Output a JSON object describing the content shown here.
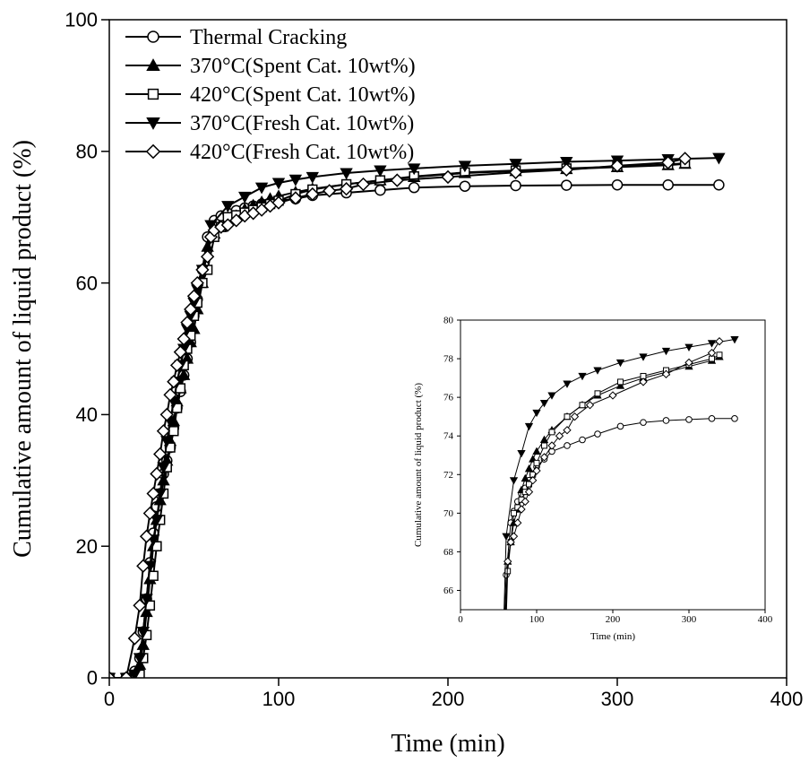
{
  "chart_data": [
    {
      "type": "line",
      "panel": "main",
      "xlabel": "Time (min)",
      "ylabel": "Cumulative amount of liquid product (%)",
      "xlim": [
        0,
        400
      ],
      "ylim": [
        0,
        100
      ],
      "xticks": [
        0,
        100,
        200,
        300,
        400
      ],
      "yticks": [
        0,
        20,
        40,
        60,
        80,
        100
      ],
      "legend_position": "top-left",
      "series": [
        {
          "name": "Thermal Cracking",
          "marker": "circle-open",
          "x": [
            0,
            10,
            15,
            18,
            20,
            22,
            24,
            26,
            28,
            30,
            32,
            34,
            36,
            38,
            40,
            42,
            44,
            46,
            48,
            50,
            52,
            55,
            58,
            62,
            66,
            70,
            75,
            80,
            85,
            90,
            95,
            100,
            110,
            120,
            140,
            160,
            180,
            210,
            240,
            270,
            300,
            330,
            360
          ],
          "y": [
            0,
            0,
            1,
            3,
            7,
            12,
            17.5,
            22,
            26,
            28,
            31,
            33,
            35,
            38,
            41,
            43.5,
            46,
            48.5,
            51,
            55,
            57.5,
            62,
            67,
            69.5,
            70.2,
            70.6,
            71,
            71.4,
            71.7,
            72,
            72.2,
            72.5,
            72.8,
            73.3,
            73.7,
            74.1,
            74.5,
            74.7,
            74.8,
            74.85,
            74.9,
            74.9,
            74.9
          ]
        },
        {
          "name": "370°C(Spent Cat. 10wt%)",
          "marker": "triangle-up-filled",
          "x": [
            0,
            10,
            15,
            18,
            20,
            22,
            24,
            26,
            28,
            30,
            32,
            34,
            36,
            38,
            40,
            42,
            44,
            46,
            48,
            50,
            52,
            55,
            58,
            62,
            66,
            70,
            75,
            80,
            85,
            90,
            95,
            100,
            110,
            120,
            140,
            160,
            180,
            210,
            240,
            270,
            300,
            330,
            340
          ],
          "y": [
            0,
            0,
            0.5,
            2,
            5,
            10,
            15,
            20,
            24,
            27,
            30,
            33,
            36,
            39,
            42,
            44,
            46,
            48.5,
            51,
            53,
            56,
            60,
            65.5,
            67.5,
            68.5,
            69.5,
            70.2,
            71.2,
            71.8,
            72.3,
            72.8,
            73.2,
            73.8,
            74.3,
            75,
            75.6,
            76.1,
            76.7,
            77,
            77.3,
            77.6,
            77.9,
            78.1
          ]
        },
        {
          "name": "420°C(Spent Cat. 10wt%)",
          "marker": "square-open",
          "x": [
            0,
            10,
            15,
            18,
            20,
            22,
            24,
            26,
            28,
            30,
            32,
            34,
            36,
            38,
            40,
            42,
            44,
            46,
            48,
            50,
            52,
            55,
            58,
            62,
            66,
            70,
            75,
            80,
            85,
            90,
            95,
            100,
            110,
            120,
            140,
            160,
            180,
            210,
            240,
            270,
            300,
            330,
            340
          ],
          "y": [
            0,
            0,
            0,
            0.5,
            3,
            6.5,
            11,
            15.5,
            20,
            24,
            28,
            32,
            35,
            37.5,
            41,
            44,
            47.5,
            50,
            52,
            55,
            57,
            60,
            62,
            67,
            68.5,
            70,
            70.3,
            70.7,
            71.1,
            71.5,
            72,
            72.5,
            73.5,
            74.2,
            75,
            75.6,
            76.2,
            76.8,
            77.1,
            77.4,
            77.7,
            78,
            78.2
          ]
        },
        {
          "name": "370°C(Fresh Cat. 10wt%)",
          "marker": "triangle-down-filled",
          "x": [
            0,
            10,
            15,
            18,
            20,
            22,
            24,
            26,
            28,
            30,
            32,
            34,
            36,
            38,
            40,
            42,
            44,
            46,
            48,
            50,
            52,
            55,
            60,
            70,
            80,
            90,
            100,
            110,
            120,
            140,
            160,
            180,
            210,
            240,
            270,
            300,
            330,
            360
          ],
          "y": [
            0,
            0,
            0.5,
            3,
            7,
            12,
            17,
            21,
            24,
            28,
            32,
            36,
            39,
            42,
            45,
            47.5,
            50,
            53,
            55,
            57,
            59,
            62,
            68.8,
            71.7,
            73.1,
            74.5,
            75.2,
            75.7,
            76.1,
            76.7,
            77.1,
            77.4,
            77.8,
            78.1,
            78.4,
            78.6,
            78.8,
            79
          ]
        },
        {
          "name": "420°C(Fresh Cat. 10wt%)",
          "marker": "diamond-open",
          "x": [
            0,
            10,
            15,
            18,
            20,
            22,
            24,
            26,
            28,
            30,
            32,
            34,
            36,
            38,
            40,
            42,
            44,
            46,
            48,
            50,
            52,
            55,
            58,
            60,
            62,
            66,
            70,
            75,
            80,
            85,
            90,
            95,
            100,
            110,
            120,
            130,
            140,
            150,
            170,
            200,
            240,
            270,
            300,
            330,
            340
          ],
          "y": [
            0,
            0,
            6,
            11,
            17,
            21.5,
            25,
            28,
            31,
            34,
            37.5,
            40,
            43,
            45,
            47.5,
            49.5,
            51.5,
            54,
            56,
            58,
            60,
            62,
            64,
            67,
            68,
            68.5,
            68.8,
            69.5,
            70.2,
            70.6,
            71.1,
            71.7,
            72.2,
            72.9,
            73.5,
            74,
            74.3,
            75,
            75.6,
            76.1,
            76.8,
            77.2,
            77.8,
            78.3,
            78.9
          ]
        }
      ]
    },
    {
      "type": "line",
      "panel": "inset",
      "xlabel": "Time (min)",
      "ylabel": "Cumulative amount of liquid product (%)",
      "xlim": [
        0,
        400
      ],
      "ylim": [
        65,
        80
      ],
      "xticks": [
        0,
        100,
        200,
        300,
        400
      ],
      "yticks": [
        66,
        68,
        70,
        72,
        74,
        76,
        78,
        80
      ],
      "series": [
        {
          "name": "Thermal Cracking",
          "marker": "circle-open",
          "x": [
            55,
            60,
            66,
            70,
            75,
            80,
            85,
            90,
            95,
            100,
            110,
            120,
            140,
            160,
            180,
            210,
            240,
            270,
            300,
            330,
            360
          ],
          "y": [
            62,
            66.8,
            69.5,
            70.1,
            70.6,
            71,
            71.3,
            71.7,
            72,
            72.4,
            72.8,
            73.2,
            73.5,
            73.8,
            74.1,
            74.5,
            74.7,
            74.8,
            74.85,
            74.9,
            74.9
          ]
        },
        {
          "name": "370°C(Spent Cat. 10wt%)",
          "marker": "triangle-up-filled",
          "x": [
            55,
            62,
            66,
            70,
            75,
            80,
            85,
            90,
            95,
            100,
            110,
            120,
            140,
            160,
            180,
            210,
            240,
            270,
            300,
            330,
            340
          ],
          "y": [
            60,
            67.5,
            68.5,
            69.5,
            70.2,
            71.2,
            71.8,
            72.3,
            72.8,
            73.2,
            73.8,
            74.3,
            75,
            75.6,
            76.1,
            76.6,
            77,
            77.3,
            77.6,
            77.9,
            78.1
          ]
        },
        {
          "name": "420°C(Spent Cat. 10wt%)",
          "marker": "square-open",
          "x": [
            58,
            62,
            66,
            70,
            75,
            80,
            85,
            90,
            95,
            100,
            110,
            120,
            140,
            160,
            180,
            210,
            240,
            270,
            300,
            330,
            340
          ],
          "y": [
            62,
            67,
            68.5,
            70,
            70.3,
            70.7,
            71.1,
            71.5,
            72,
            72.6,
            73.5,
            74.2,
            75,
            75.6,
            76.2,
            76.8,
            77.1,
            77.4,
            77.7,
            78,
            78.2
          ]
        },
        {
          "name": "370°C(Fresh Cat. 10wt%)",
          "marker": "triangle-down-filled",
          "x": [
            55,
            60,
            70,
            80,
            90,
            100,
            110,
            120,
            140,
            160,
            180,
            210,
            240,
            270,
            300,
            330,
            360
          ],
          "y": [
            62,
            68.8,
            71.7,
            73.1,
            74.5,
            75.2,
            75.7,
            76.1,
            76.7,
            77.1,
            77.4,
            77.8,
            78.1,
            78.4,
            78.6,
            78.8,
            79
          ]
        },
        {
          "name": "420°C(Fresh Cat. 10wt%)",
          "marker": "diamond-open",
          "x": [
            58,
            62,
            66,
            70,
            75,
            80,
            85,
            90,
            95,
            100,
            110,
            120,
            130,
            140,
            150,
            170,
            200,
            240,
            270,
            300,
            330,
            340
          ],
          "y": [
            64,
            67.5,
            68.5,
            68.8,
            69.5,
            70.2,
            70.6,
            71.1,
            71.7,
            72.2,
            72.9,
            73.5,
            74,
            74.3,
            75,
            75.6,
            76.1,
            76.8,
            77.2,
            77.8,
            78.3,
            78.9
          ]
        }
      ]
    }
  ]
}
